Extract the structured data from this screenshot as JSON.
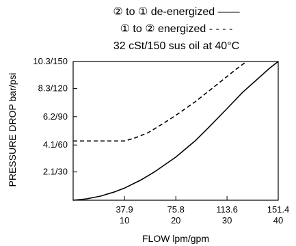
{
  "chart_data": {
    "type": "line",
    "title_lines": [
      "② to ① de-energized ——",
      "① to ② energized - - - -",
      "32 cSt/150 sus oil at 40°C"
    ],
    "xlabel": "FLOW lpm/gpm",
    "ylabel": "PRESSURE DROP bar/psi",
    "xlim": [
      0,
      151.4
    ],
    "ylim": [
      0,
      10.3
    ],
    "grid": false,
    "x_ticks": [
      {
        "value": 37.9,
        "label_top": "37.9",
        "label_bottom": "10"
      },
      {
        "value": 75.8,
        "label_top": "75.8",
        "label_bottom": "20"
      },
      {
        "value": 113.6,
        "label_top": "113.6",
        "label_bottom": "30"
      },
      {
        "value": 151.4,
        "label_top": "151.4",
        "label_bottom": "40"
      }
    ],
    "y_ticks": [
      {
        "value": 2.1,
        "label": "2.1/30"
      },
      {
        "value": 4.1,
        "label": "4.1/60"
      },
      {
        "value": 6.2,
        "label": "6.2/90"
      },
      {
        "value": 8.3,
        "label": "8.3/120"
      },
      {
        "value": 10.3,
        "label": "10.3/150"
      }
    ],
    "series": [
      {
        "name": "② to ① de-energized",
        "style": "solid",
        "color": "#000000",
        "x": [
          0,
          10,
          20,
          30,
          37.9,
          50,
          60,
          75.8,
          90,
          100,
          113.6,
          125,
          135,
          145,
          151.4
        ],
        "y": [
          0.0,
          0.1,
          0.3,
          0.6,
          0.9,
          1.5,
          2.1,
          3.2,
          4.4,
          5.4,
          6.8,
          8.0,
          8.9,
          9.8,
          10.3
        ]
      },
      {
        "name": "① to ② energized",
        "style": "dashed",
        "color": "#000000",
        "x": [
          0,
          20,
          37.9,
          45,
          55,
          65,
          75.8,
          90,
          100,
          110,
          120,
          128
        ],
        "y": [
          4.4,
          4.4,
          4.4,
          4.6,
          5.0,
          5.6,
          6.3,
          7.3,
          8.1,
          8.9,
          9.7,
          10.3
        ]
      }
    ]
  }
}
